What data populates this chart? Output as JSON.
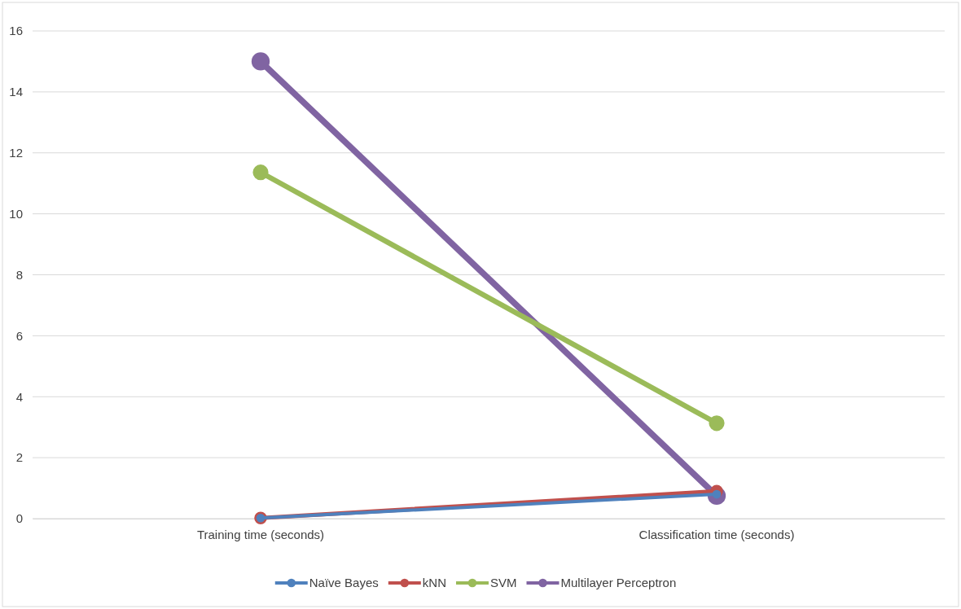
{
  "chart_data": {
    "type": "line",
    "categories": [
      "Training time (seconds)",
      "Classification time (seconds)"
    ],
    "series": [
      {
        "name": "Naïve Bayes",
        "color": "#4f81bd",
        "values": [
          0.02,
          0.8
        ]
      },
      {
        "name": "kNN",
        "color": "#c0504d",
        "values": [
          0.02,
          0.9
        ]
      },
      {
        "name": "SVM",
        "color": "#9bbb59",
        "values": [
          11.36,
          3.13
        ]
      },
      {
        "name": "Multilayer Perceptron",
        "color": "#8064a2",
        "values": [
          15,
          0.75
        ]
      }
    ],
    "ylim": [
      0,
      16
    ],
    "yticks": [
      0,
      2,
      4,
      6,
      8,
      10,
      12,
      14,
      16
    ],
    "grid": "y",
    "legend": "bottom",
    "marker": "circle",
    "line_style": "solid"
  }
}
